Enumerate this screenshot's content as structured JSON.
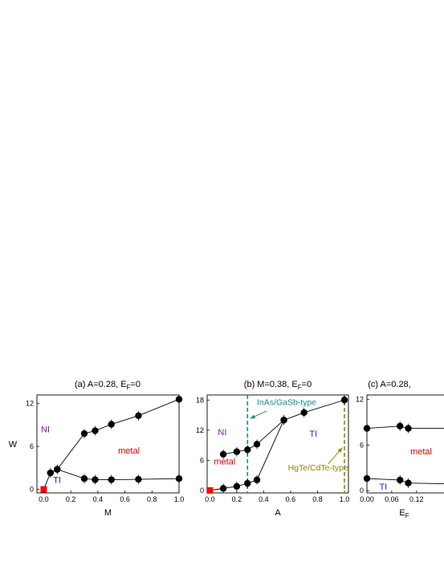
{
  "chart_data": [
    {
      "type": "line",
      "title": "(a) A=0.28, E",
      "title_sub": "F",
      "title_end": "=0",
      "xlabel": "M",
      "ylabel": "W",
      "xlim": [
        -0.05,
        1.0
      ],
      "ylim": [
        -0.5,
        13.2
      ],
      "xticks": [
        "0.0",
        "0.2",
        "0.4",
        "0.6",
        "0.8",
        "1.0"
      ],
      "xtick_values": [
        0.0,
        0.2,
        0.4,
        0.6,
        0.8,
        1.0
      ],
      "yticks": [
        "0",
        "6",
        "12"
      ],
      "ytick_values": [
        0,
        6,
        12
      ],
      "series": [
        {
          "x": [
            0.0,
            0.05,
            0.1,
            0.3,
            0.38,
            0.5,
            0.7,
            1.0
          ],
          "y": [
            0.0,
            2.3,
            2.8,
            7.8,
            8.2,
            9.1,
            10.3,
            12.6
          ]
        },
        {
          "x": [
            0.05,
            0.1,
            0.3,
            0.38,
            0.5,
            0.7,
            1.0
          ],
          "y": [
            2.3,
            2.8,
            1.5,
            1.35,
            1.35,
            1.4,
            1.5
          ]
        }
      ],
      "special_point": {
        "x": 0.0,
        "y": 0.0
      },
      "regions": [
        {
          "text": "NI",
          "x": -0.02,
          "y": 8.0,
          "color": "#7b1fa2"
        },
        {
          "text": "metal",
          "x": 0.55,
          "y": 5.0,
          "color": "#e00000"
        },
        {
          "text": "TI",
          "x": 0.07,
          "y": 0.9,
          "color": "#1a1aff"
        }
      ]
    },
    {
      "type": "line",
      "title": "(b) M=0.38, E",
      "title_sub": "F",
      "title_end": "=0",
      "xlabel": "A",
      "ylabel": "",
      "xlim": [
        -0.02,
        1.03
      ],
      "ylim": [
        -0.5,
        19.0
      ],
      "xticks": [
        "0.0",
        "0.2",
        "0.4",
        "0.6",
        "0.8",
        "1.0"
      ],
      "xtick_values": [
        0.0,
        0.2,
        0.4,
        0.6,
        0.8,
        1.0
      ],
      "yticks": [
        "0",
        "6",
        "12",
        "18"
      ],
      "ytick_values": [
        0,
        6,
        12,
        18
      ],
      "series": [
        {
          "x": [
            0.1,
            0.2,
            0.28,
            0.35,
            0.55,
            0.7,
            1.0
          ],
          "y": [
            7.2,
            7.7,
            8.1,
            9.2,
            14.0,
            15.5,
            18.0
          ]
        },
        {
          "x": [
            0.0,
            0.1,
            0.2,
            0.28,
            0.35,
            0.55
          ],
          "y": [
            0.0,
            0.4,
            0.8,
            1.4,
            2.1,
            14.0
          ]
        }
      ],
      "special_point": {
        "x": 0.0,
        "y": 0.0
      },
      "vlines": [
        {
          "x": 0.28,
          "color": "#1a8a8a"
        },
        {
          "x": 1.0,
          "color": "#8a8a00"
        }
      ],
      "regions": [
        {
          "text": "NI",
          "x": 0.06,
          "y": 11.0,
          "color": "#7b1fa2"
        },
        {
          "text": "metal",
          "x": 0.03,
          "y": 5.2,
          "color": "#e00000"
        },
        {
          "text": "TI",
          "x": 0.74,
          "y": 10.7,
          "color": "#1a1aff"
        }
      ],
      "annotations": [
        {
          "text": "InAs/GaSb-type",
          "x": 0.35,
          "y": 17.0,
          "color": "#1a8a8a",
          "arrow_from": [
            0.42,
            15.8
          ],
          "arrow_to": [
            0.3,
            14.3
          ]
        },
        {
          "text": "HgTe/CdTe-type",
          "x": 0.58,
          "y": 4.0,
          "color": "#8a8a00",
          "arrow_from": [
            0.88,
            5.3
          ],
          "arrow_to": [
            0.985,
            8.5
          ]
        }
      ]
    },
    {
      "type": "line",
      "title": "(c) A=0.28, ",
      "title_sub": "",
      "title_end": "",
      "xlabel": "E",
      "xlabel_sub": "F",
      "ylabel": "",
      "xlim": [
        0.0,
        0.2
      ],
      "ylim": [
        -0.3,
        12.6
      ],
      "xticks": [
        "0.00",
        "0.06",
        "0.12"
      ],
      "xtick_values": [
        0.0,
        0.06,
        0.12
      ],
      "yticks": [
        "0",
        "6",
        "12"
      ],
      "ytick_values": [
        0,
        6,
        12
      ],
      "series": [
        {
          "x": [
            0.0,
            0.08,
            0.1,
            0.2
          ],
          "y": [
            8.2,
            8.5,
            8.2,
            8.2
          ]
        },
        {
          "x": [
            0.0,
            0.08,
            0.1,
            0.2
          ],
          "y": [
            1.6,
            1.4,
            1.0,
            0.9
          ]
        }
      ],
      "regions": [
        {
          "text": "metal",
          "x": 0.105,
          "y": 4.8,
          "color": "#e00000"
        },
        {
          "text": "TI",
          "x": 0.03,
          "y": 0.1,
          "color": "#1a1aff"
        }
      ]
    }
  ]
}
